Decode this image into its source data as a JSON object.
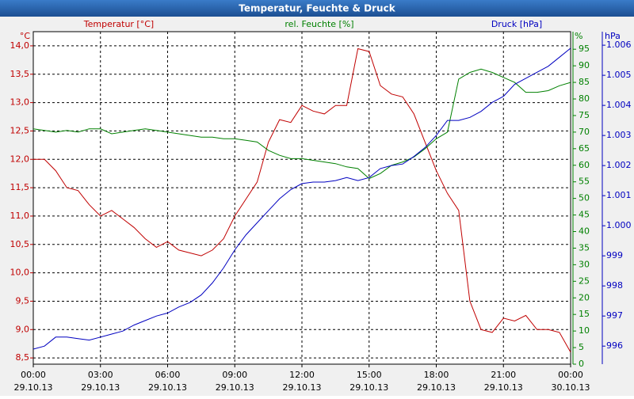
{
  "chart_data": {
    "type": "line",
    "title": "Temperatur, Feuchte & Druck",
    "x": [
      0,
      0.5,
      1,
      1.5,
      2,
      2.5,
      3,
      3.5,
      4,
      4.5,
      5,
      5.5,
      6,
      6.5,
      7,
      7.5,
      8,
      8.5,
      9,
      9.5,
      10,
      10.5,
      11,
      11.5,
      12,
      12.5,
      13,
      13.5,
      14,
      14.5,
      15,
      15.5,
      16,
      16.5,
      17,
      17.5,
      18,
      18.5,
      19,
      19.5,
      20,
      20.5,
      21,
      21.5,
      22,
      22.5,
      23,
      23.5,
      24
    ],
    "xlim": [
      0,
      24
    ],
    "xticks": [
      {
        "value": 0,
        "label": "00:00"
      },
      {
        "value": 3,
        "label": "03:00"
      },
      {
        "value": 6,
        "label": "06:00"
      },
      {
        "value": 9,
        "label": "09:00"
      },
      {
        "value": 12,
        "label": "12:00"
      },
      {
        "value": 15,
        "label": "15:00"
      },
      {
        "value": 18,
        "label": "18:00"
      },
      {
        "value": 21,
        "label": "21:00"
      },
      {
        "value": 24,
        "label": "00:00"
      }
    ],
    "xtick_dates": [
      "29.10.13",
      "29.10.13",
      "29.10.13",
      "29.10.13",
      "29.10.13",
      "29.10.13",
      "29.10.13",
      "29.10.13",
      "30.10.13"
    ],
    "y_unit": "°C",
    "y2_unit": "%",
    "y3_unit": "hPa",
    "ylim": [
      8.39,
      14.25
    ],
    "yticks": [
      {
        "value": 8.5,
        "label": "8,5"
      },
      {
        "value": 9,
        "label": "9,0"
      },
      {
        "value": 9.5,
        "label": "9,5"
      },
      {
        "value": 10,
        "label": "10,0"
      },
      {
        "value": 10.5,
        "label": "10,5"
      },
      {
        "value": 11,
        "label": "11,0"
      },
      {
        "value": 11.5,
        "label": "11,5"
      },
      {
        "value": 12,
        "label": "12,0"
      },
      {
        "value": 12.5,
        "label": "12,5"
      },
      {
        "value": 13,
        "label": "13,0"
      },
      {
        "value": 13.5,
        "label": "13,5"
      },
      {
        "value": 14,
        "label": "14,0"
      }
    ],
    "y2lim": [
      0,
      100.3
    ],
    "y2ticks": [
      0,
      5,
      10,
      15,
      20,
      25,
      30,
      35,
      40,
      45,
      50,
      55,
      60,
      65,
      70,
      75,
      80,
      85,
      90,
      95
    ],
    "y3lim": [
      995.4,
      1006.45
    ],
    "y3ticks": [
      996,
      997,
      998,
      999,
      {
        "value": 1000,
        "label": "1.000"
      },
      {
        "value": 1001,
        "label": "1.001"
      },
      {
        "value": 1002,
        "label": "1.002"
      },
      {
        "value": 1003,
        "label": "1.003"
      },
      {
        "value": 1004,
        "label": "1.004"
      },
      {
        "value": 1005,
        "label": "1.005"
      },
      {
        "value": 1006,
        "label": "1.006"
      }
    ],
    "grid": true,
    "series": [
      {
        "name": "Temperatur [°C]",
        "color": "#c00000",
        "axis": "y",
        "values": [
          12.0,
          12.0,
          11.8,
          11.5,
          11.45,
          11.2,
          11.0,
          11.1,
          10.95,
          10.8,
          10.6,
          10.45,
          10.55,
          10.4,
          10.35,
          10.3,
          10.4,
          10.6,
          11.0,
          11.3,
          11.6,
          12.3,
          12.7,
          12.65,
          12.95,
          12.85,
          12.8,
          12.95,
          12.95,
          13.95,
          13.9,
          13.3,
          13.15,
          13.1,
          12.8,
          12.3,
          11.8,
          11.4,
          11.1,
          9.5,
          9.0,
          8.95,
          9.2,
          9.15,
          9.25,
          9.0,
          9.0,
          8.95,
          8.6
        ]
      },
      {
        "name": "rel. Feuchte [%]",
        "color": "#008000",
        "axis": "y2",
        "values": [
          71,
          70.5,
          70,
          70.5,
          70,
          71,
          71,
          69.5,
          70,
          70.5,
          71,
          70.5,
          70,
          69.5,
          69,
          68.5,
          68.5,
          68,
          68,
          67.5,
          67,
          64.5,
          63,
          62,
          62,
          61.5,
          61,
          60.5,
          59.5,
          59,
          56,
          57.5,
          60,
          61,
          62.5,
          65,
          68,
          70,
          86,
          88,
          89,
          88,
          86.5,
          85,
          82,
          82,
          82.5,
          84,
          85
        ]
      },
      {
        "name": "Druck [hPa]",
        "color": "#0000c0",
        "axis": "y3",
        "values": [
          995.9,
          996,
          996.3,
          996.3,
          996.25,
          996.2,
          996.3,
          996.4,
          996.5,
          996.7,
          996.85,
          997,
          997.1,
          997.3,
          997.45,
          997.7,
          998.1,
          998.6,
          999.2,
          999.7,
          1000.1,
          1000.5,
          1000.9,
          1001.2,
          1001.4,
          1001.45,
          1001.45,
          1001.5,
          1001.6,
          1001.5,
          1001.6,
          1001.9,
          1002,
          1002.05,
          1002.3,
          1002.6,
          1003.0,
          1003.5,
          1003.5,
          1003.6,
          1003.8,
          1004.1,
          1004.3,
          1004.7,
          1004.9,
          1005.1,
          1005.3,
          1005.6,
          1005.9
        ]
      }
    ]
  }
}
